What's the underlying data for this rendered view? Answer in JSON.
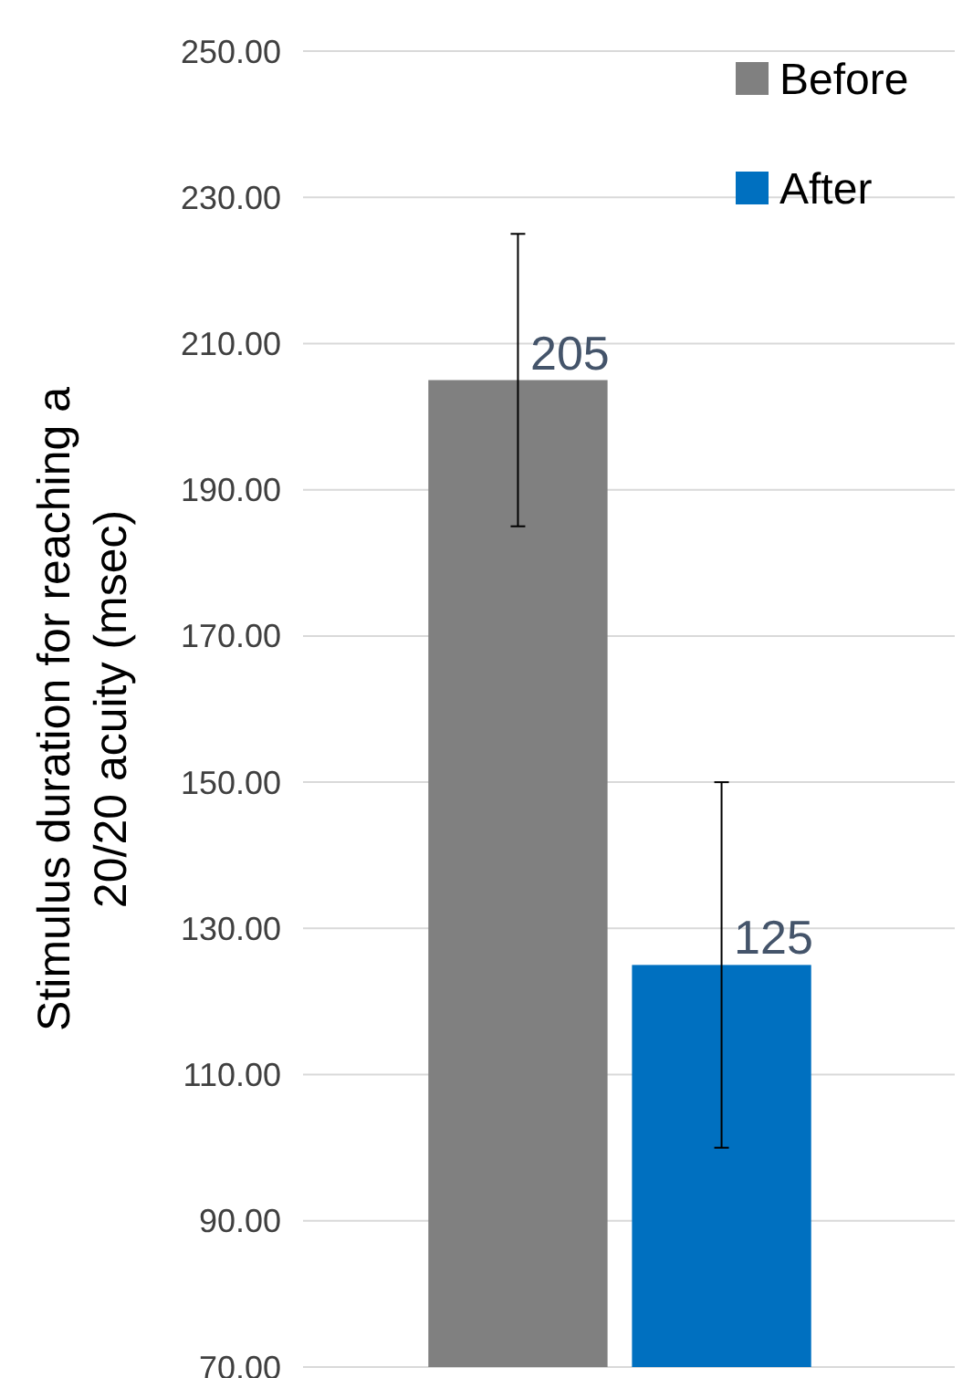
{
  "chart_data": {
    "type": "bar",
    "ylabel": "Stimulus duration for reaching a 20/20 acuity (msec)",
    "categories": [
      null
    ],
    "series": [
      {
        "name": "Before",
        "color": "#808080",
        "values": [
          205
        ],
        "errors": [
          20
        ]
      },
      {
        "name": "After",
        "color": "#0070c0",
        "values": [
          125
        ],
        "errors": [
          25
        ]
      }
    ],
    "ylim": [
      70,
      250
    ],
    "yticks": [
      {
        "value": 70,
        "label": "70.00"
      },
      {
        "value": 90,
        "label": "90.00"
      },
      {
        "value": 110,
        "label": "110.00"
      },
      {
        "value": 130,
        "label": "130.00"
      },
      {
        "value": 150,
        "label": "150.00"
      },
      {
        "value": 170,
        "label": "170.00"
      },
      {
        "value": 190,
        "label": "190.00"
      },
      {
        "value": 210,
        "label": "210.00"
      },
      {
        "value": 230,
        "label": "230.00"
      },
      {
        "value": 250,
        "label": "250.00"
      }
    ],
    "grid": "y",
    "legend": "top right",
    "data_labels": true
  }
}
